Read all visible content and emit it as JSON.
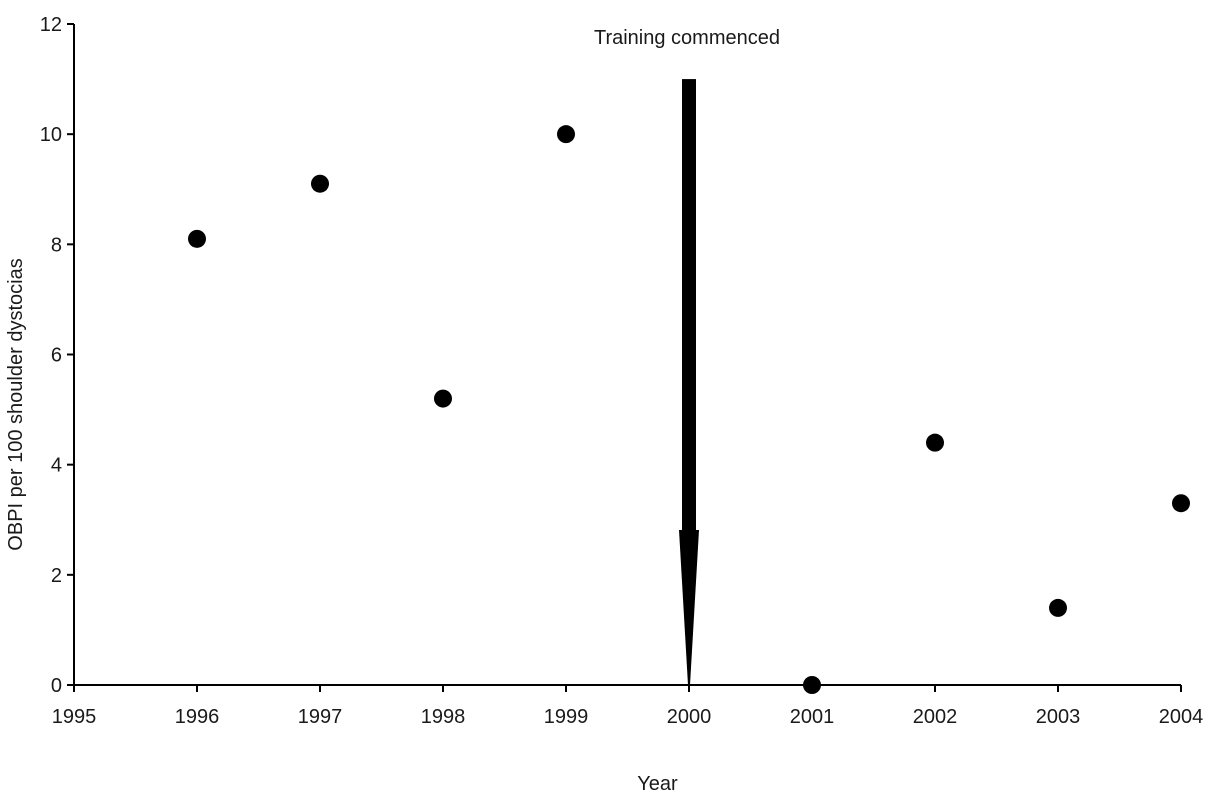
{
  "chart_data": {
    "type": "scatter",
    "title": "",
    "xlabel": "Year",
    "ylabel": "OBPI per 100 shoulder dystocias",
    "xlim": [
      1995,
      2004
    ],
    "ylim": [
      0,
      12
    ],
    "x_ticks": [
      1995,
      1996,
      1997,
      1998,
      1999,
      2000,
      2001,
      2002,
      2003,
      2004
    ],
    "y_ticks": [
      0,
      2,
      4,
      6,
      8,
      10,
      12
    ],
    "grid": false,
    "legend": "none",
    "series": [
      {
        "x": [
          1996,
          1997,
          1998,
          1999,
          2001,
          2002,
          2003,
          2004
        ],
        "y": [
          8.1,
          9.1,
          5.2,
          10.0,
          0.0,
          4.4,
          1.4,
          3.3
        ]
      }
    ],
    "annotations": [
      {
        "text": "Training commenced",
        "x": 2000,
        "y_start": 11,
        "y_end": 0
      }
    ],
    "colors": {
      "marker": "#000000",
      "axis": "#000000",
      "text": "#1a1a1a"
    }
  }
}
